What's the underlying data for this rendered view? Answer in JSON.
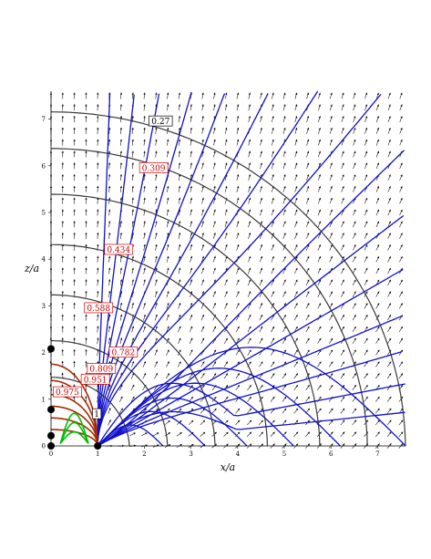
{
  "chart_data": {
    "type": "line",
    "title": "",
    "xlabel": "x/a",
    "ylabel": "z/a",
    "xlim": [
      0,
      7.6
    ],
    "ylim": [
      0,
      7.6
    ],
    "x_ticks": [
      "0",
      "1",
      "2",
      "3",
      "4",
      "5",
      "6",
      "7"
    ],
    "y_ticks": [
      "0",
      "1",
      "2",
      "3",
      "4",
      "5",
      "6",
      "7"
    ],
    "grid": false,
    "legend": "none",
    "contour_labels": [
      {
        "text": "0.27",
        "x": 2.35,
        "y": 6.95,
        "color": "#000000"
      },
      {
        "text": "0.309",
        "x": 2.2,
        "y": 5.95,
        "color": "#cc0000"
      },
      {
        "text": "0.434",
        "x": 1.45,
        "y": 4.2,
        "color": "#cc0000"
      },
      {
        "text": "0.588",
        "x": 1.02,
        "y": 2.95,
        "color": "#cc0000"
      },
      {
        "text": "0.782",
        "x": 1.55,
        "y": 2.0,
        "color": "#cc0000"
      },
      {
        "text": "0.809",
        "x": 1.08,
        "y": 1.65,
        "color": "#cc0000"
      },
      {
        "text": "0.951",
        "x": 0.95,
        "y": 1.42,
        "color": "#cc0000"
      },
      {
        "text": "0.975",
        "x": 0.35,
        "y": 1.15,
        "color": "#cc0000"
      },
      {
        "text": "1",
        "x": 0.98,
        "y": 0.68,
        "color": "#000000"
      }
    ],
    "equipotential_radii": [
      1.5,
      2.3,
      3.3,
      4.4,
      5.5,
      6.5,
      7.3
    ],
    "field_line_angles_deg": [
      88,
      84,
      80,
      75,
      70,
      64,
      58,
      51,
      44,
      37,
      30,
      23,
      17,
      11,
      6
    ],
    "inner_field_loops": [
      0.35,
      0.6,
      0.85,
      1.1,
      1.4,
      1.75
    ],
    "marked_points": [
      {
        "x": 0,
        "y": 0
      },
      {
        "x": 0,
        "y": 0.22
      },
      {
        "x": 0,
        "y": 0.78
      },
      {
        "x": 0,
        "y": 2.08
      },
      {
        "x": 1,
        "y": 0
      }
    ],
    "colors": {
      "equipotential": "#3a3a3a",
      "field_line": "#1010cc",
      "inner_red": "#a52a00",
      "inner_green": "#00bb00",
      "arrow": "#000000",
      "label": "#cc0000"
    }
  }
}
